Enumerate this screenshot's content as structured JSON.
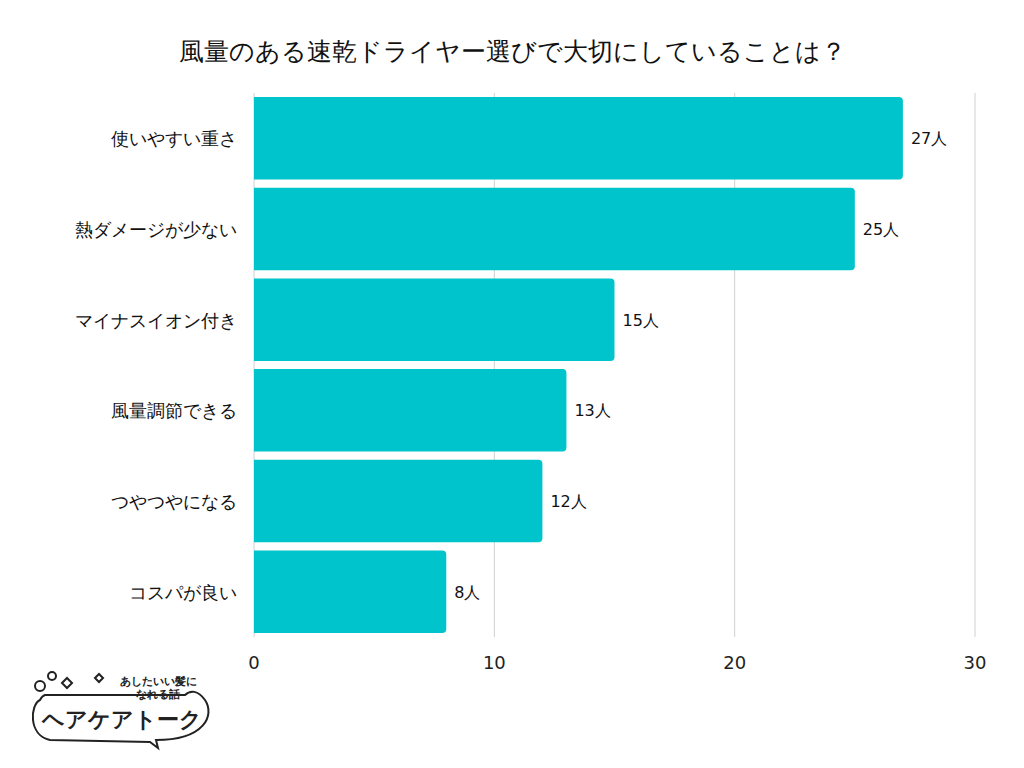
{
  "chart_data": {
    "type": "bar",
    "orientation": "horizontal",
    "title": "風量のある速乾ドライヤー選びで大切にしていることは？",
    "categories": [
      "使いやすい重さ",
      "熱ダメージが少ない",
      "マイナスイオン付き",
      "風量調節できる",
      "つやつやになる",
      "コスパが良い"
    ],
    "values": [
      27,
      25,
      15,
      13,
      12,
      8
    ],
    "value_labels": [
      "27人",
      "25人",
      "15人",
      "13人",
      "12人",
      "8人"
    ],
    "data_labels": true,
    "color": "#00c4cc",
    "xlim": [
      0,
      30
    ],
    "xticks": [
      0,
      10,
      20,
      30
    ],
    "grid": true
  },
  "logo": {
    "tagline": [
      "あしたいい髪に",
      "なれる話"
    ],
    "name": "ヘアケアトーク"
  }
}
